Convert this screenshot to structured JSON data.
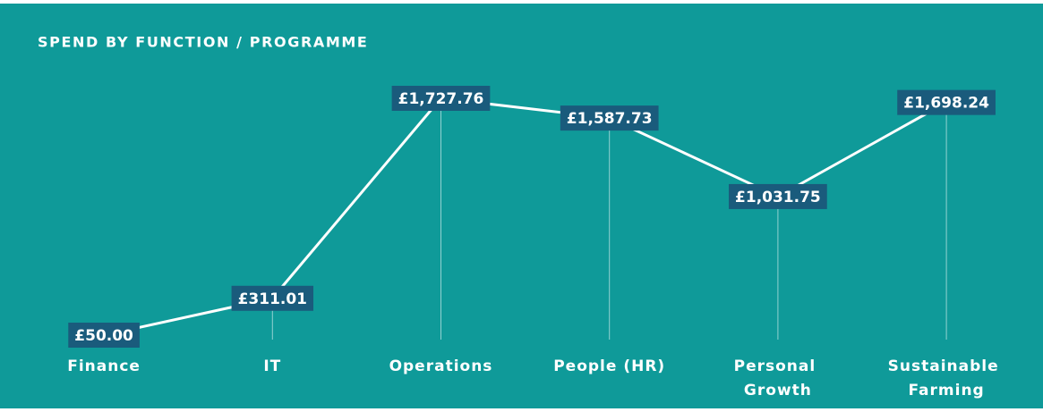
{
  "chart_data": {
    "type": "line",
    "title": "SPEND BY FUNCTION / PROGRAMME",
    "categories": [
      "Finance",
      "IT",
      "Operations",
      "People (HR)",
      "Personal Growth",
      "Sustainable Farming"
    ],
    "values": [
      50.0,
      311.01,
      1727.76,
      1587.73,
      1031.75,
      1698.24
    ],
    "value_labels": [
      "£50.00",
      "£311.01",
      "£1,727.76",
      "£1,587.73",
      "£1,031.75",
      "£1,698.24"
    ],
    "color": "#ffffff",
    "label_color": "#1a5b7c",
    "background": "#0f9a99"
  }
}
